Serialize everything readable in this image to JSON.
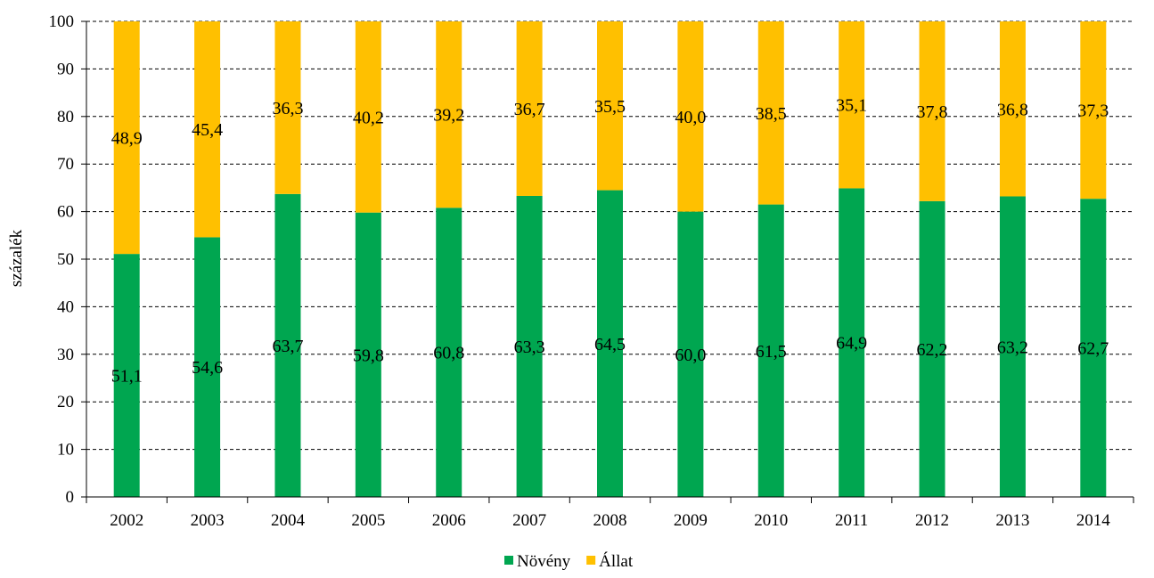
{
  "chart_data": {
    "type": "bar",
    "stacked": true,
    "ylabel": "százalék",
    "xlabel": "",
    "ylim": [
      0,
      100
    ],
    "yticks": [
      0,
      10,
      20,
      30,
      40,
      50,
      60,
      70,
      80,
      90,
      100
    ],
    "grid": "horizontal dashed",
    "legend_position": "bottom",
    "categories": [
      "2002",
      "2003",
      "2004",
      "2005",
      "2006",
      "2007",
      "2008",
      "2009",
      "2010",
      "2011",
      "2012",
      "2013",
      "2014"
    ],
    "series": [
      {
        "name": "Növény",
        "color": "#00A650",
        "values": [
          51.1,
          54.6,
          63.7,
          59.8,
          60.8,
          63.3,
          64.5,
          60.0,
          61.5,
          64.9,
          62.2,
          63.2,
          62.7
        ],
        "labels": [
          "51,1",
          "54,6",
          "63,7",
          "59,8",
          "60,8",
          "63,3",
          "64,5",
          "60,0",
          "61,5",
          "64,9",
          "62,2",
          "63,2",
          "62,7"
        ]
      },
      {
        "name": "Állat",
        "color": "#FFC000",
        "values": [
          48.9,
          45.4,
          36.3,
          40.2,
          39.2,
          36.7,
          35.5,
          40.0,
          38.5,
          35.1,
          37.8,
          36.8,
          37.3
        ],
        "labels": [
          "48,9",
          "45,4",
          "36,3",
          "40,2",
          "39,2",
          "36,7",
          "35,5",
          "40,0",
          "38,5",
          "35,1",
          "37,8",
          "36,8",
          "37,3"
        ]
      }
    ]
  }
}
